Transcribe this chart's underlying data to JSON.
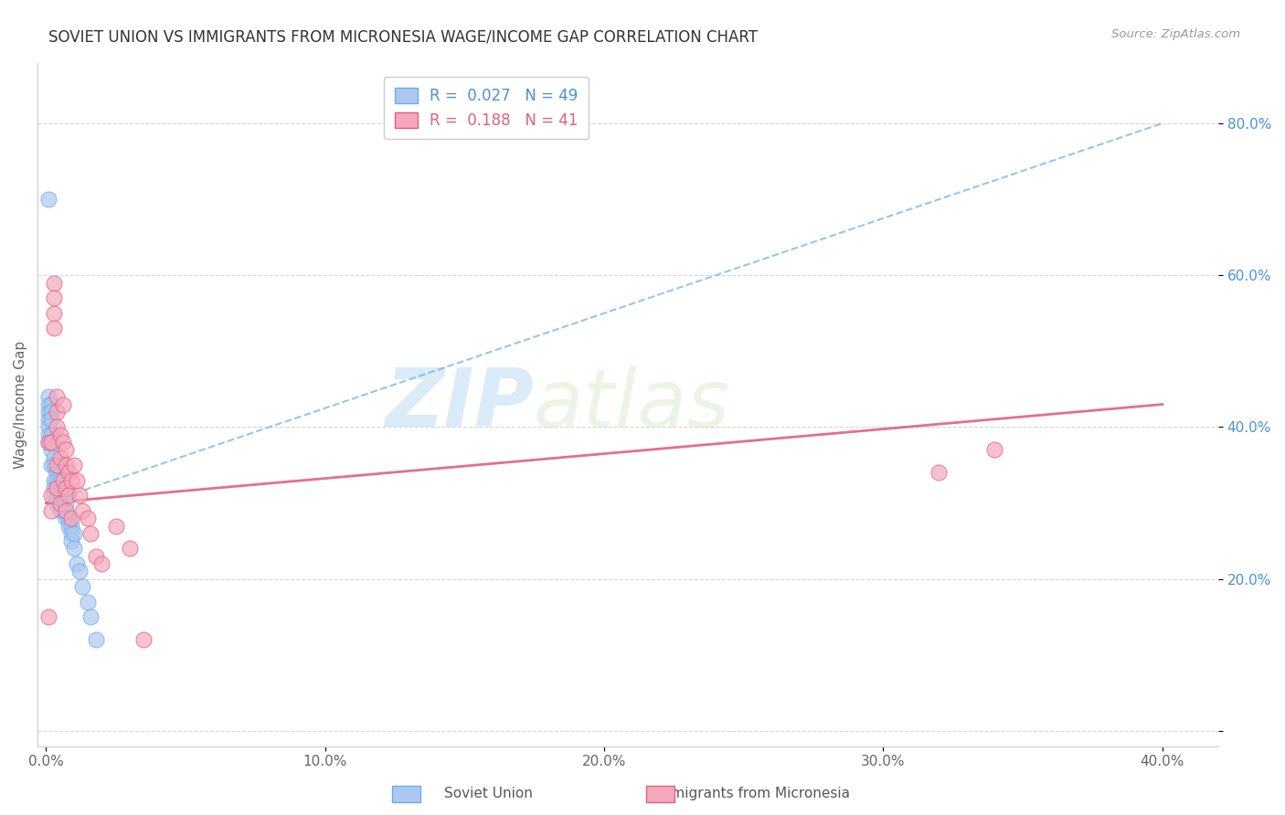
{
  "title": "SOVIET UNION VS IMMIGRANTS FROM MICRONESIA WAGE/INCOME GAP CORRELATION CHART",
  "source": "Source: ZipAtlas.com",
  "ylabel_label": "Wage/Income Gap",
  "x_min": -0.003,
  "x_max": 0.42,
  "y_min": -0.02,
  "y_max": 0.88,
  "x_ticks": [
    0.0,
    0.1,
    0.2,
    0.3,
    0.4
  ],
  "x_tick_labels": [
    "0.0%",
    "10.0%",
    "20.0%",
    "30.0%",
    "40.0%"
  ],
  "y_ticks": [
    0.0,
    0.2,
    0.4,
    0.6,
    0.8
  ],
  "y_tick_labels": [
    "",
    "20.0%",
    "40.0%",
    "60.0%",
    "80.0%"
  ],
  "soviet_color": "#adc8f0",
  "micronesia_color": "#f5a8bb",
  "trend_soviet_color": "#6aaee8",
  "trend_micronesia_color": "#e06080",
  "legend_r_color": "#4a90d9",
  "background_color": "#ffffff",
  "grid_color": "#cccccc",
  "watermark_zip": "ZIP",
  "watermark_atlas": "atlas",
  "soviet_x": [
    0.001,
    0.001,
    0.001,
    0.001,
    0.001,
    0.001,
    0.001,
    0.002,
    0.002,
    0.002,
    0.002,
    0.002,
    0.002,
    0.003,
    0.003,
    0.003,
    0.003,
    0.003,
    0.004,
    0.004,
    0.004,
    0.004,
    0.004,
    0.005,
    0.005,
    0.005,
    0.005,
    0.005,
    0.005,
    0.006,
    0.006,
    0.006,
    0.007,
    0.007,
    0.007,
    0.008,
    0.008,
    0.009,
    0.009,
    0.009,
    0.01,
    0.01,
    0.011,
    0.012,
    0.013,
    0.015,
    0.016,
    0.018,
    0.001
  ],
  "soviet_y": [
    0.44,
    0.43,
    0.42,
    0.41,
    0.4,
    0.39,
    0.38,
    0.43,
    0.42,
    0.41,
    0.39,
    0.37,
    0.35,
    0.36,
    0.35,
    0.33,
    0.32,
    0.31,
    0.34,
    0.33,
    0.32,
    0.31,
    0.3,
    0.35,
    0.34,
    0.33,
    0.31,
    0.3,
    0.29,
    0.32,
    0.31,
    0.29,
    0.31,
    0.3,
    0.28,
    0.28,
    0.27,
    0.27,
    0.26,
    0.25,
    0.26,
    0.24,
    0.22,
    0.21,
    0.19,
    0.17,
    0.15,
    0.12,
    0.7
  ],
  "micronesia_x": [
    0.001,
    0.001,
    0.002,
    0.002,
    0.002,
    0.003,
    0.003,
    0.003,
    0.003,
    0.004,
    0.004,
    0.004,
    0.004,
    0.004,
    0.005,
    0.005,
    0.005,
    0.006,
    0.006,
    0.006,
    0.007,
    0.007,
    0.007,
    0.007,
    0.008,
    0.008,
    0.009,
    0.009,
    0.01,
    0.011,
    0.012,
    0.013,
    0.015,
    0.016,
    0.018,
    0.02,
    0.025,
    0.03,
    0.035,
    0.32,
    0.34
  ],
  "micronesia_y": [
    0.38,
    0.15,
    0.38,
    0.31,
    0.29,
    0.59,
    0.57,
    0.55,
    0.53,
    0.44,
    0.42,
    0.4,
    0.35,
    0.32,
    0.39,
    0.36,
    0.3,
    0.43,
    0.38,
    0.33,
    0.37,
    0.35,
    0.32,
    0.29,
    0.34,
    0.31,
    0.33,
    0.28,
    0.35,
    0.33,
    0.31,
    0.29,
    0.28,
    0.26,
    0.23,
    0.22,
    0.27,
    0.24,
    0.12,
    0.34,
    0.37
  ],
  "trend_soviet_x0": 0.0,
  "trend_soviet_y0": 0.3,
  "trend_soviet_x1": 0.4,
  "trend_soviet_y1": 0.8,
  "trend_micronesia_x0": 0.0,
  "trend_micronesia_y0": 0.3,
  "trend_micronesia_x1": 0.4,
  "trend_micronesia_y1": 0.43
}
